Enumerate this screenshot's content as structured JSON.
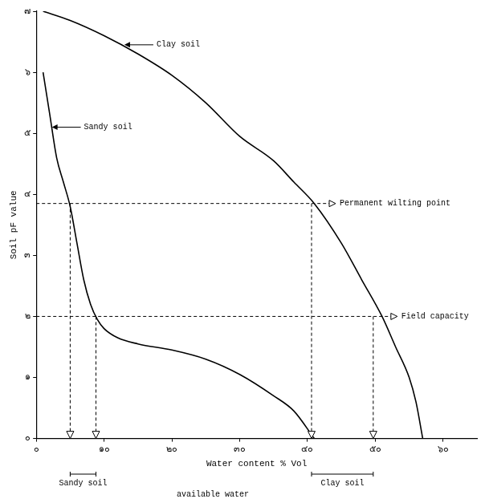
{
  "chart_data": {
    "type": "line",
    "x_label": "Water content % Vol",
    "y_label": "Soil pF value",
    "xlim": [
      0,
      65
    ],
    "xticks": [
      {
        "value": 0,
        "label": "๐"
      },
      {
        "value": 10,
        "label": "๑๐"
      },
      {
        "value": 20,
        "label": "๒๐"
      },
      {
        "value": 30,
        "label": "๓๐"
      },
      {
        "value": 40,
        "label": "๔๐"
      },
      {
        "value": 50,
        "label": "๕๐"
      },
      {
        "value": 60,
        "label": "๖๐"
      }
    ],
    "ylim": [
      0,
      7
    ],
    "yticks": [
      {
        "value": 0,
        "label": "๐"
      },
      {
        "value": 1,
        "label": "๑"
      },
      {
        "value": 2,
        "label": "๒"
      },
      {
        "value": 3,
        "label": "๓"
      },
      {
        "value": 4,
        "label": "๔"
      },
      {
        "value": 5,
        "label": "๕"
      },
      {
        "value": 6,
        "label": "๖"
      },
      {
        "value": 7,
        "label": "๗"
      }
    ],
    "grid": false,
    "series": [
      {
        "name": "Clay soil",
        "color": "#000000",
        "marker": "none",
        "line_style": "solid",
        "x": [
          1,
          5,
          10,
          15,
          20,
          25,
          30,
          35,
          38,
          41,
          45,
          48,
          51,
          53,
          55,
          56,
          57
        ],
        "values": [
          7,
          6.85,
          6.6,
          6.3,
          5.95,
          5.5,
          4.95,
          4.55,
          4.2,
          3.85,
          3.2,
          2.6,
          2.0,
          1.5,
          1.0,
          0.6,
          0
        ]
      },
      {
        "name": "Sandy soil",
        "color": "#000000",
        "marker": "none",
        "line_style": "solid",
        "x": [
          1,
          2,
          3,
          4,
          5,
          6,
          7,
          8,
          9,
          10,
          12,
          15,
          20,
          25,
          30,
          35,
          38,
          41
        ],
        "values": [
          6,
          5.3,
          4.6,
          4.2,
          3.8,
          3.2,
          2.6,
          2.2,
          1.95,
          1.8,
          1.65,
          1.55,
          1.45,
          1.3,
          1.05,
          0.7,
          0.45,
          0
        ]
      }
    ],
    "annotations": [
      {
        "text": "Clay soil",
        "x": 13,
        "y": 6.45
      },
      {
        "text": "Sandy soil",
        "x": 2.3,
        "y": 5.1
      }
    ],
    "reference_lines": [
      {
        "label": "Permanent wilting point",
        "y": 3.85,
        "x": [
          5,
          40.6
        ]
      },
      {
        "label": "Field capacity",
        "y": 2,
        "x": [
          8.8,
          49.7
        ]
      }
    ],
    "available_water": {
      "text": "available water",
      "ranges": [
        {
          "name": "Sandy soil",
          "x": [
            5,
            8.8
          ]
        },
        {
          "name": "Clay soil",
          "x": [
            40.6,
            49.7
          ]
        }
      ]
    }
  }
}
